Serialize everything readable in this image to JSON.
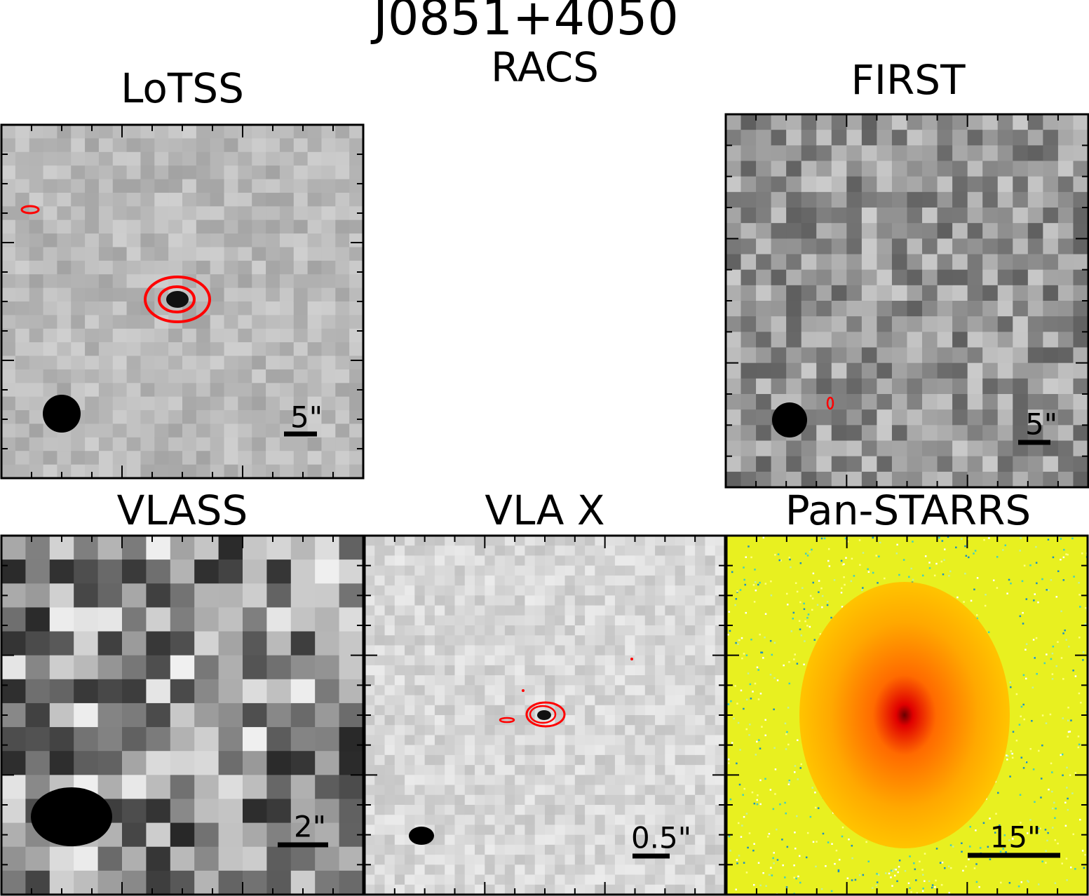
{
  "title": "J0851+4050",
  "panels": [
    {
      "title": "LoTSS",
      "scale_label": "5\""
    },
    {
      "title": "RACS"
    },
    {
      "title": "FIRST",
      "scale_label": "5\""
    },
    {
      "title": "VLASS",
      "scale_label": "2\""
    },
    {
      "title": "VLA X",
      "scale_label": "0.5\""
    },
    {
      "title": "Pan-STARRS",
      "scale_label": "15\""
    }
  ]
}
